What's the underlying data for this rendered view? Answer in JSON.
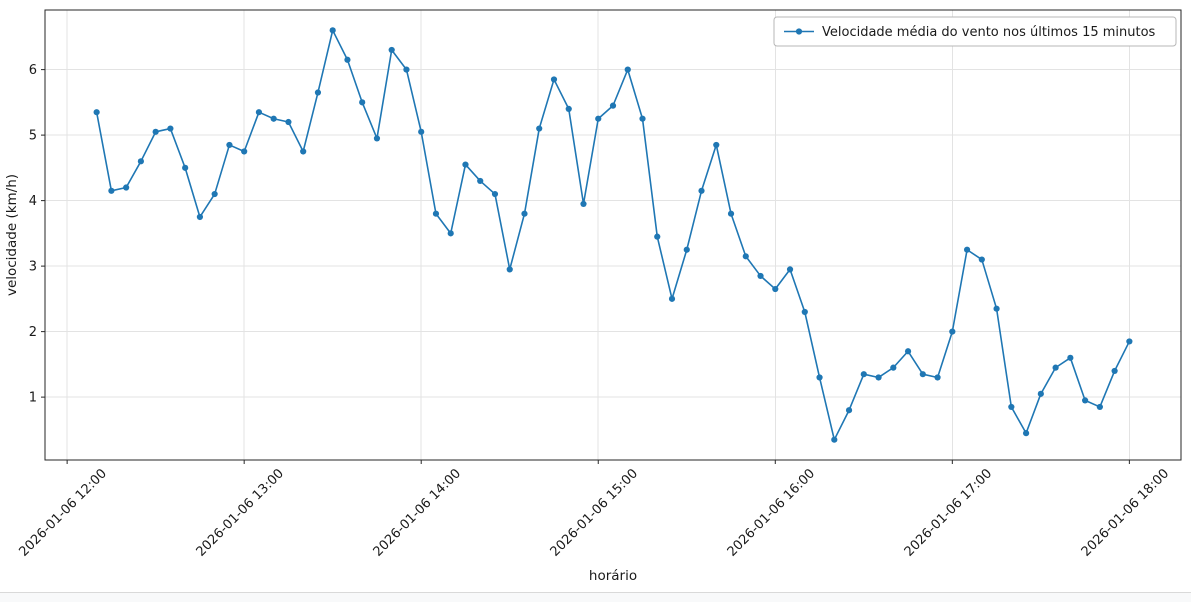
{
  "chart_data": {
    "type": "line",
    "title": "",
    "xlabel": "horário",
    "ylabel": "velocidade (km/h)",
    "grid": true,
    "legend_position": "upper right",
    "ylim": [
      0.04,
      6.91
    ],
    "y_ticks": [
      1,
      2,
      3,
      4,
      5,
      6
    ],
    "x_tick_labels": [
      "2026-01-06 12:00",
      "2026-01-06 13:00",
      "2026-01-06 14:00",
      "2026-01-06 15:00",
      "2026-01-06 16:00",
      "2026-01-06 17:00",
      "2026-01-06 18:00"
    ],
    "x": [
      "2026-01-06 12:10",
      "2026-01-06 12:15",
      "2026-01-06 12:20",
      "2026-01-06 12:25",
      "2026-01-06 12:30",
      "2026-01-06 12:35",
      "2026-01-06 12:40",
      "2026-01-06 12:45",
      "2026-01-06 12:50",
      "2026-01-06 12:55",
      "2026-01-06 13:00",
      "2026-01-06 13:05",
      "2026-01-06 13:10",
      "2026-01-06 13:15",
      "2026-01-06 13:20",
      "2026-01-06 13:25",
      "2026-01-06 13:30",
      "2026-01-06 13:35",
      "2026-01-06 13:40",
      "2026-01-06 13:45",
      "2026-01-06 13:50",
      "2026-01-06 13:55",
      "2026-01-06 14:00",
      "2026-01-06 14:05",
      "2026-01-06 14:10",
      "2026-01-06 14:15",
      "2026-01-06 14:20",
      "2026-01-06 14:25",
      "2026-01-06 14:30",
      "2026-01-06 14:35",
      "2026-01-06 14:40",
      "2026-01-06 14:45",
      "2026-01-06 14:50",
      "2026-01-06 14:55",
      "2026-01-06 15:00",
      "2026-01-06 15:05",
      "2026-01-06 15:10",
      "2026-01-06 15:15",
      "2026-01-06 15:20",
      "2026-01-06 15:25",
      "2026-01-06 15:30",
      "2026-01-06 15:35",
      "2026-01-06 15:40",
      "2026-01-06 15:45",
      "2026-01-06 15:50",
      "2026-01-06 15:55",
      "2026-01-06 16:00",
      "2026-01-06 16:05",
      "2026-01-06 16:10",
      "2026-01-06 16:15",
      "2026-01-06 16:20",
      "2026-01-06 16:25",
      "2026-01-06 16:30",
      "2026-01-06 16:35",
      "2026-01-06 16:40",
      "2026-01-06 16:45",
      "2026-01-06 16:50",
      "2026-01-06 16:55",
      "2026-01-06 17:00",
      "2026-01-06 17:05",
      "2026-01-06 17:10",
      "2026-01-06 17:15",
      "2026-01-06 17:20",
      "2026-01-06 17:25",
      "2026-01-06 17:30",
      "2026-01-06 17:35",
      "2026-01-06 17:40",
      "2026-01-06 17:45",
      "2026-01-06 17:50",
      "2026-01-06 17:55",
      "2026-01-06 18:00"
    ],
    "series": [
      {
        "name": "Velocidade média do vento nos últimos 15 minutos",
        "color": "#1f77b4",
        "values": [
          5.35,
          4.15,
          4.2,
          4.6,
          5.05,
          5.1,
          4.5,
          3.75,
          4.1,
          4.85,
          4.75,
          5.35,
          5.25,
          5.2,
          4.75,
          5.65,
          6.6,
          6.15,
          5.5,
          4.95,
          6.3,
          6.0,
          5.05,
          3.8,
          3.5,
          4.55,
          4.3,
          4.1,
          2.95,
          3.8,
          5.1,
          5.85,
          5.4,
          3.95,
          5.25,
          5.45,
          6.0,
          5.25,
          3.45,
          2.5,
          3.25,
          4.15,
          4.85,
          3.8,
          3.15,
          2.85,
          2.65,
          2.95,
          2.3,
          1.3,
          0.35,
          0.8,
          1.35,
          1.3,
          1.45,
          1.7,
          1.35,
          1.3,
          2.0,
          3.25,
          3.1,
          2.35,
          0.85,
          0.45,
          1.05,
          1.45,
          1.6,
          0.95,
          0.85,
          1.4,
          1.85
        ]
      }
    ],
    "colors": {
      "grid": "#e3e3e3",
      "spine": "#262626",
      "background": "#ffffff",
      "legend_border": "#b7b7b7"
    }
  }
}
